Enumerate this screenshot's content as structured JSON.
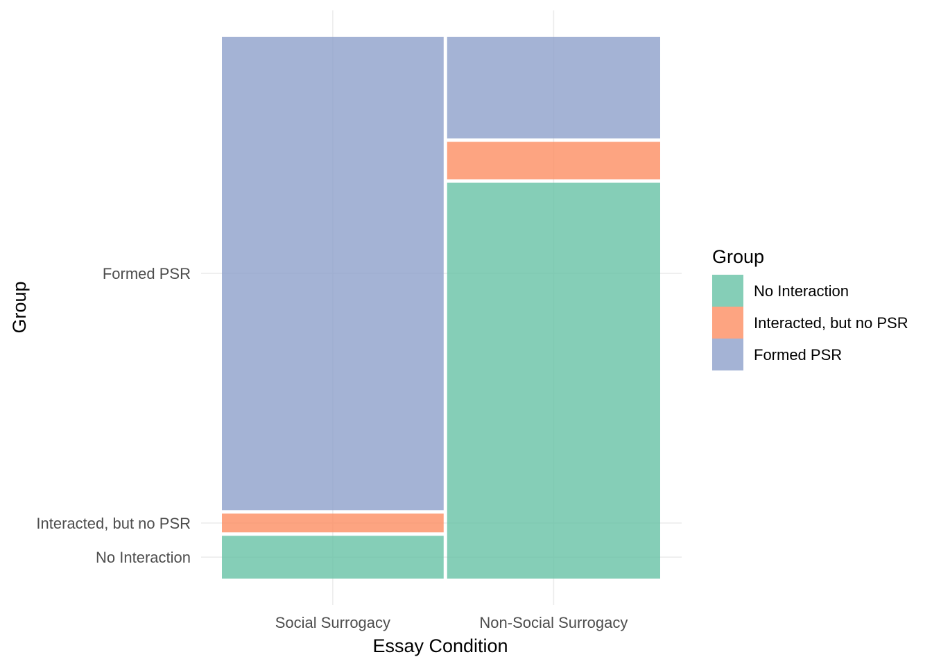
{
  "chart_data": {
    "type": "mosaic",
    "xlabel": "Essay Condition",
    "ylabel": "Group",
    "categories": [
      "Social Surrogacy",
      "Non-Social Surrogacy"
    ],
    "column_proportions": [
      0.51,
      0.49
    ],
    "groups": [
      "No Interaction",
      "Interacted, but no PSR",
      "Formed PSR"
    ],
    "series": [
      {
        "name": "No Interaction",
        "color": "#66c2a5",
        "values": [
          0.08,
          0.74
        ]
      },
      {
        "name": "Interacted, but no PSR",
        "color": "#fc8d62",
        "values": [
          0.035,
          0.07
        ]
      },
      {
        "name": "Formed PSR",
        "color": "#8da0cb",
        "values": [
          0.885,
          0.19
        ]
      }
    ],
    "y_tick_labels": [
      "No Interaction",
      "Interacted, but no PSR",
      "Formed PSR"
    ],
    "legend": {
      "title": "Group",
      "position": "right",
      "items": [
        "No Interaction",
        "Interacted, but no PSR",
        "Formed PSR"
      ]
    },
    "grid": true
  }
}
